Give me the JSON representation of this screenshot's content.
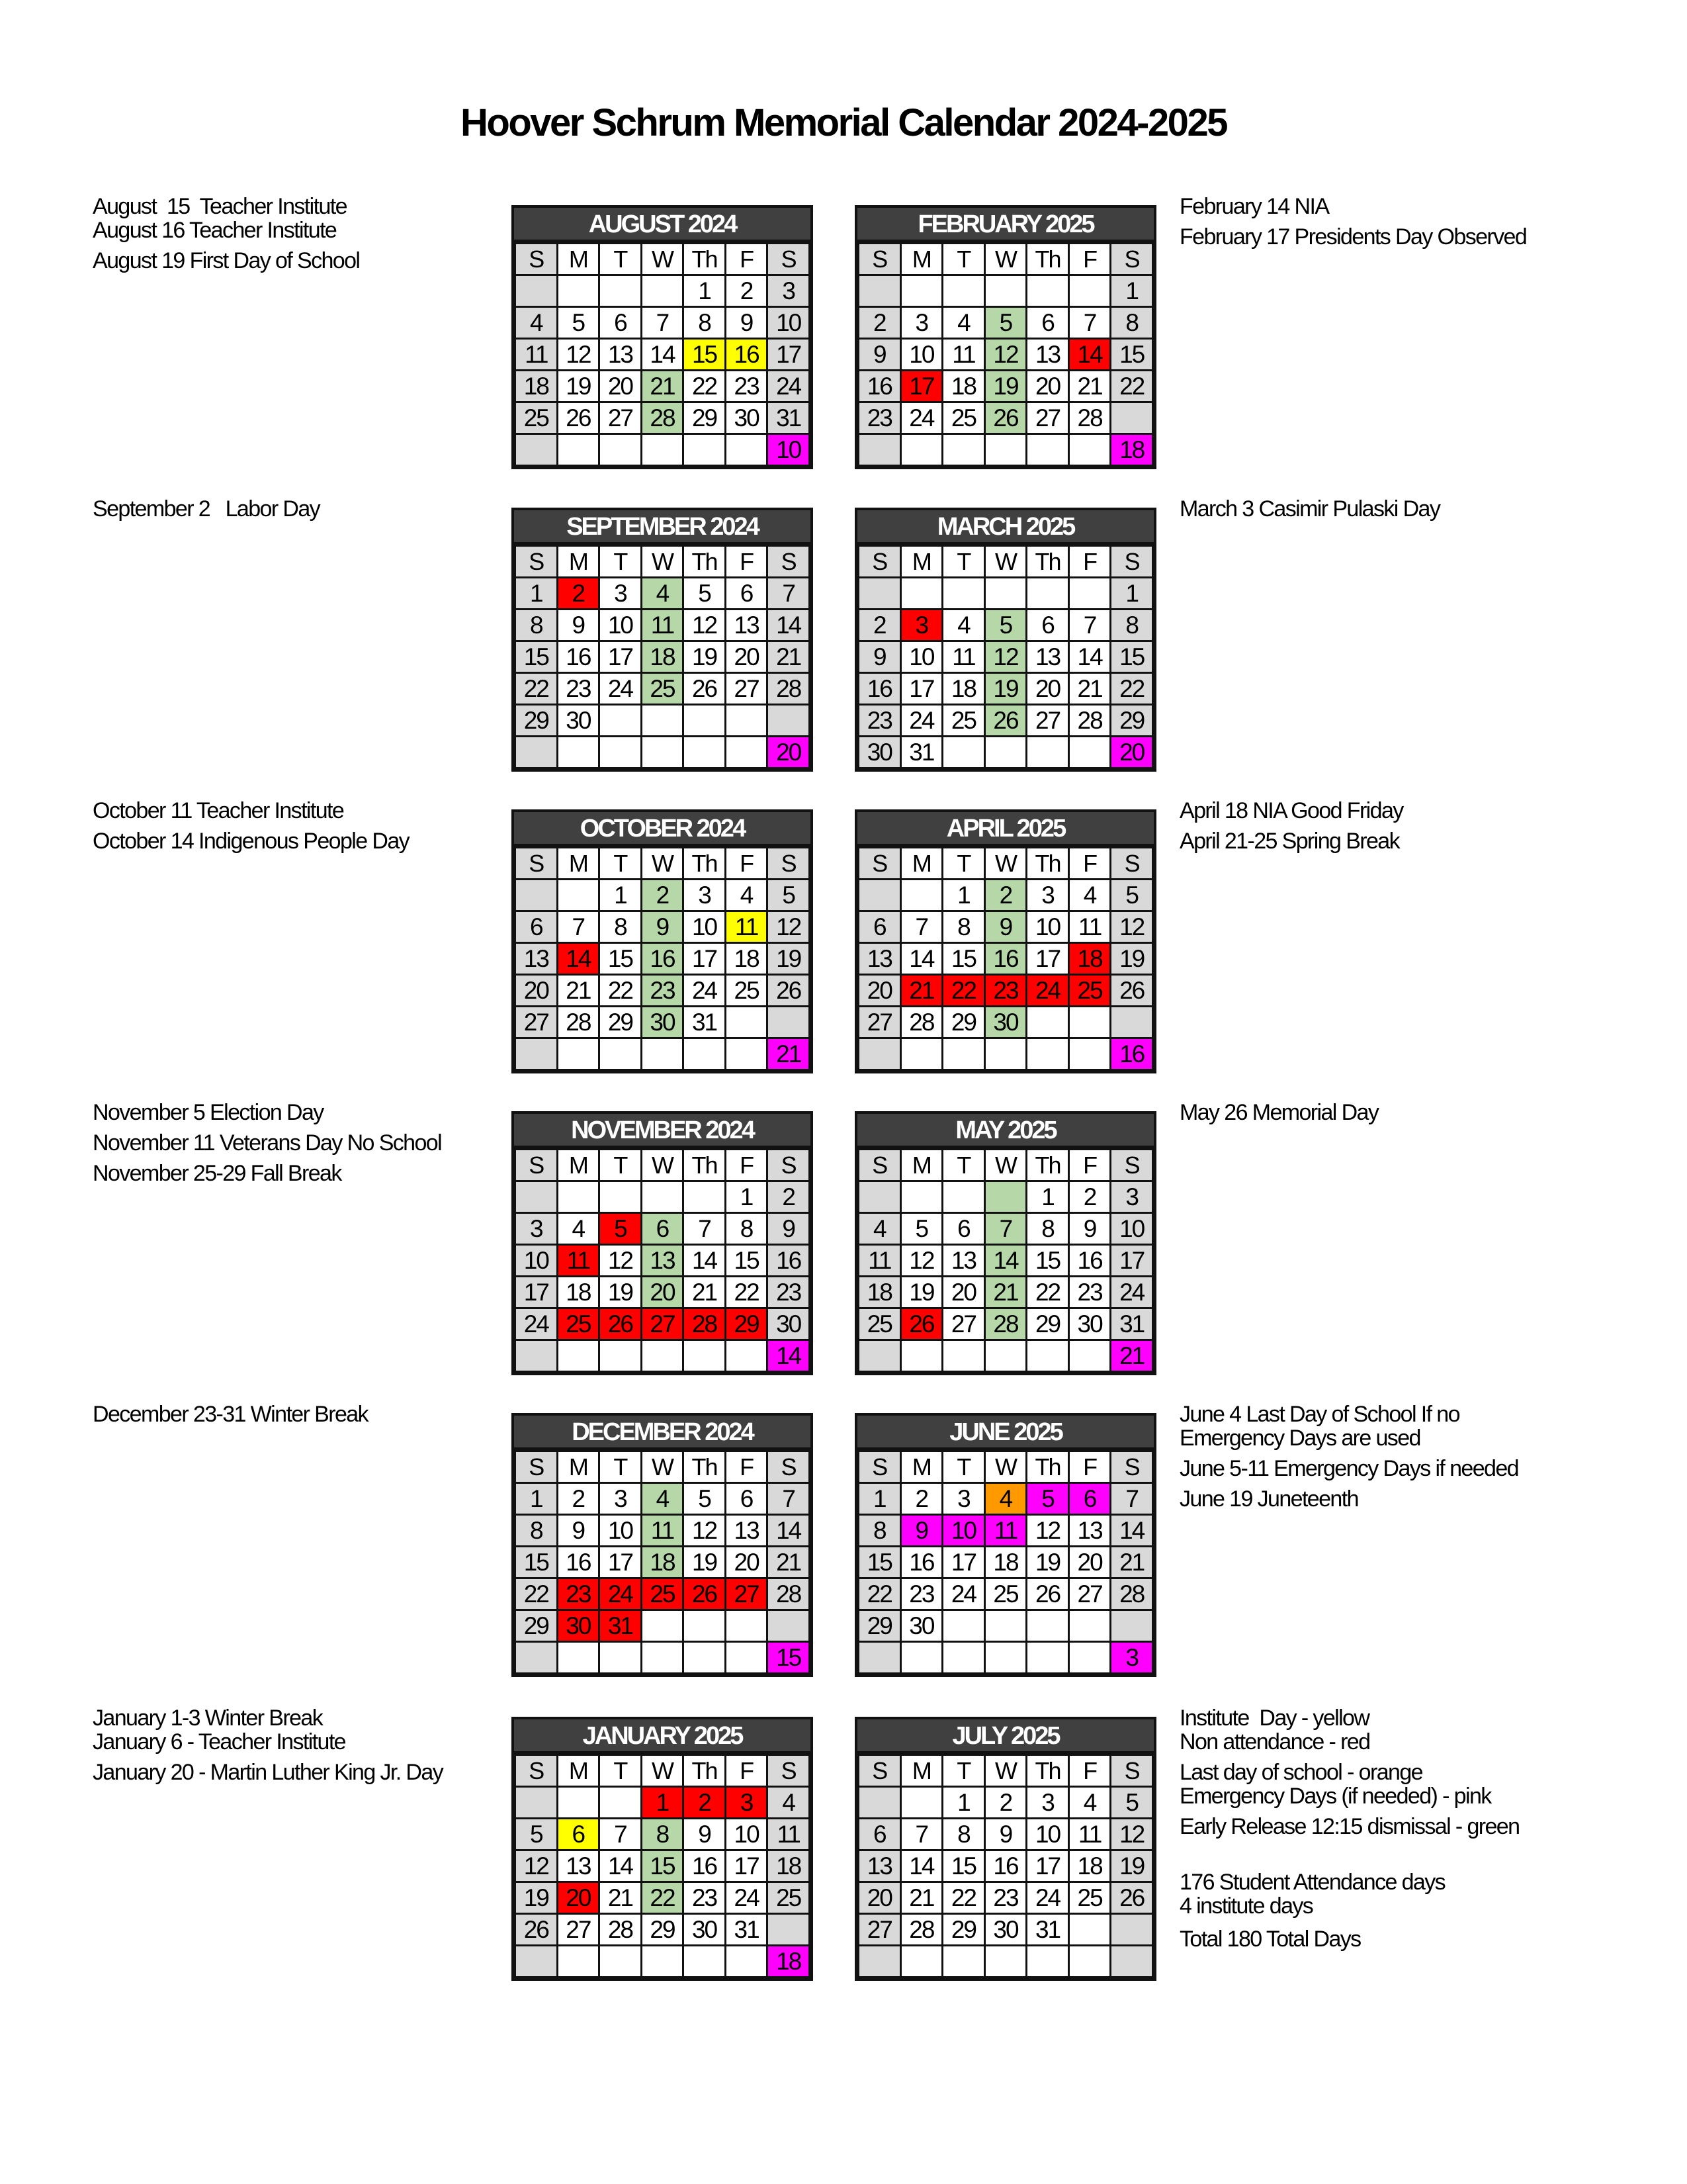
{
  "title": "Hoover Schrum Memorial Calendar 2024-2025",
  "weekday_headers": [
    "S",
    "M",
    "T",
    "W",
    "Th",
    "F",
    "S"
  ],
  "colors": {
    "yellow": "#ffff00",
    "green": "#b6d7a8",
    "red": "#ff0000",
    "pink": "#ff00ff",
    "orange": "#ff9900",
    "weekend": "#d9d9d9",
    "header": "#404040"
  },
  "months": [
    {
      "name": "AUGUST 2024",
      "first_weekday": 4,
      "days": 31,
      "count": "10",
      "highlights": {
        "15": "yellow",
        "16": "yellow",
        "21": "green",
        "28": "green"
      }
    },
    {
      "name": "SEPTEMBER 2024",
      "first_weekday": 0,
      "days": 30,
      "count": "20",
      "highlights": {
        "2": "red",
        "4": "green",
        "11": "green",
        "18": "green",
        "25": "green"
      }
    },
    {
      "name": "OCTOBER 2024",
      "first_weekday": 2,
      "days": 31,
      "count": "21",
      "highlights": {
        "2": "green",
        "9": "green",
        "11": "yellow",
        "14": "red",
        "16": "green",
        "23": "green",
        "30": "green"
      }
    },
    {
      "name": "NOVEMBER 2024",
      "first_weekday": 5,
      "days": 30,
      "count": "14",
      "highlights": {
        "5": "red",
        "6": "green",
        "11": "red",
        "13": "green",
        "20": "green",
        "25": "red",
        "26": "red",
        "27": "red",
        "28": "red",
        "29": "red"
      }
    },
    {
      "name": "DECEMBER 2024",
      "first_weekday": 0,
      "days": 31,
      "count": "15",
      "highlights": {
        "4": "green",
        "11": "green",
        "18": "green",
        "23": "red",
        "24": "red",
        "25": "red",
        "26": "red",
        "27": "red",
        "30": "red",
        "31": "red"
      }
    },
    {
      "name": "JANUARY 2025",
      "first_weekday": 3,
      "days": 31,
      "count": "18",
      "highlights": {
        "1": "red",
        "2": "red",
        "3": "red",
        "6": "yellow",
        "8": "green",
        "15": "green",
        "20": "red",
        "22": "green"
      }
    },
    {
      "name": "FEBRUARY 2025",
      "first_weekday": 6,
      "days": 28,
      "count": "18",
      "highlights": {
        "5": "green",
        "12": "green",
        "14": "red",
        "17": "red",
        "19": "green",
        "26": "green"
      }
    },
    {
      "name": "MARCH 2025",
      "first_weekday": 6,
      "days": 31,
      "count": "20",
      "highlights": {
        "3": "red",
        "5": "green",
        "12": "green",
        "19": "green",
        "26": "green"
      }
    },
    {
      "name": "APRIL 2025",
      "first_weekday": 2,
      "days": 30,
      "count": "16",
      "highlights": {
        "2": "green",
        "9": "green",
        "16": "green",
        "18": "red",
        "21": "red",
        "22": "red",
        "23": "red",
        "24": "red",
        "25": "red",
        "30": "green"
      }
    },
    {
      "name": "MAY 2025",
      "first_weekday": 4,
      "days": 31,
      "count": "21",
      "blank_highlights": {
        "3": "green"
      },
      "highlights": {
        "7": "green",
        "14": "green",
        "21": "green",
        "26": "red",
        "28": "green"
      }
    },
    {
      "name": "JUNE 2025",
      "first_weekday": 0,
      "days": 30,
      "count": "3",
      "highlights": {
        "4": "orange",
        "5": "pink",
        "6": "pink",
        "9": "pink",
        "10": "pink",
        "11": "pink"
      }
    },
    {
      "name": "JULY 2025",
      "first_weekday": 2,
      "days": 31,
      "count": "",
      "highlights": {}
    }
  ],
  "left_notes": [
    [
      [
        "August  15  Teacher Institute",
        "August 16 Teacher Institute"
      ],
      [
        "August 19 First Day of School"
      ]
    ],
    [
      [
        "September 2   Labor Day"
      ]
    ],
    [
      [
        "October 11 Teacher Institute"
      ],
      [
        "October 14 Indigenous People Day"
      ]
    ],
    [
      [
        "November 5 Election Day"
      ],
      [
        "November 11 Veterans Day No School"
      ],
      [
        "November 25-29 Fall Break"
      ]
    ],
    [
      [
        "December 23-31 Winter Break"
      ]
    ],
    [
      [
        "January 1-3 Winter Break",
        "January 6 - Teacher Institute"
      ],
      [
        "January 20 - Martin Luther King Jr. Day"
      ]
    ]
  ],
  "right_notes": [
    [
      [
        "February 14 NIA"
      ],
      [
        "February 17 Presidents Day Observed"
      ]
    ],
    [
      [
        "March 3 Casimir Pulaski Day"
      ]
    ],
    [
      [
        "April 18 NIA Good Friday"
      ],
      [
        "April 21-25 Spring Break"
      ]
    ],
    [
      [
        "May 26 Memorial Day"
      ]
    ],
    [
      [
        "June 4 Last Day of School If no",
        "Emergency Days are used"
      ],
      [
        "June 5-11 Emergency Days if needed"
      ],
      [
        "June 19 Juneteenth"
      ]
    ],
    [
      [
        "Institute  Day - yellow",
        "Non attendance - red"
      ],
      [
        "Last day of school - orange",
        "Emergency Days (if needed) - pink"
      ],
      [
        "Early Release 12:15 dismissal - green"
      ],
      [
        "176 Student Attendance days",
        "4 institute days"
      ],
      [
        "Total 180 Total Days"
      ]
    ]
  ]
}
